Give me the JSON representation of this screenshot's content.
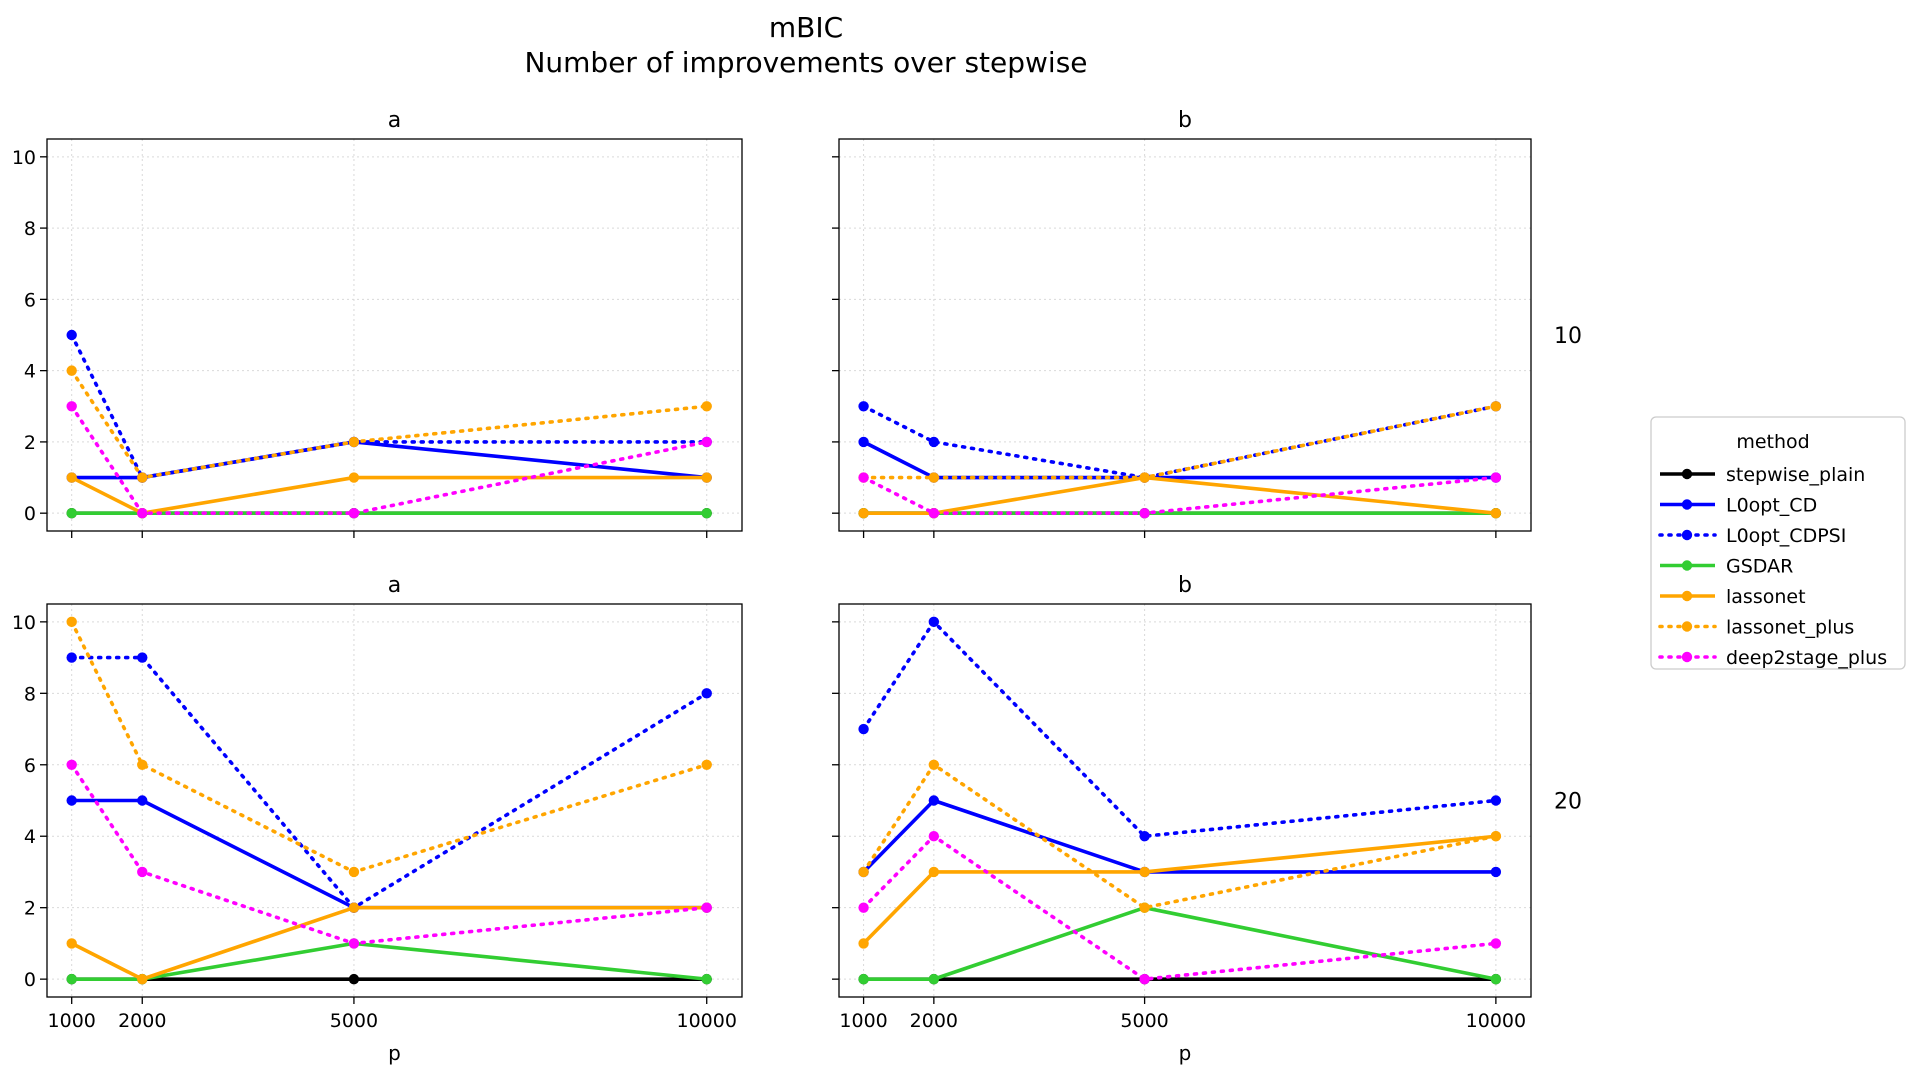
{
  "chart_data": {
    "type": "line",
    "title": "mBIC",
    "subtitle": "Number of improvements over stepwise",
    "xlabel": "p",
    "ylabel": "",
    "x": [
      1000,
      2000,
      5000,
      10000
    ],
    "xticks": [
      "1000",
      "2000",
      "5000",
      "10000"
    ],
    "yticks": [
      "0",
      "2",
      "4",
      "6",
      "8",
      "10"
    ],
    "xlim": [
      650,
      10500
    ],
    "ylim": [
      -0.5,
      10.5
    ],
    "grid": true,
    "legend_position": "right",
    "legend_title": "method",
    "methods": [
      {
        "name": "stepwise_plain",
        "color": "#000000",
        "style": "solid"
      },
      {
        "name": "L0opt_CD",
        "color": "#0000ff",
        "style": "solid"
      },
      {
        "name": "L0opt_CDPSI",
        "color": "#0000ff",
        "style": "dotted"
      },
      {
        "name": "GSDAR",
        "color": "#32cd32",
        "style": "solid"
      },
      {
        "name": "lassonet",
        "color": "#ffa500",
        "style": "solid"
      },
      {
        "name": "lassonet_plus",
        "color": "#ffa500",
        "style": "dotted"
      },
      {
        "name": "deep2stage_plus",
        "color": "#ff00ff",
        "style": "dotted"
      }
    ],
    "row_labels": [
      "10",
      "20"
    ],
    "panels": [
      {
        "col_title": "a",
        "row_label": "10",
        "series": {
          "stepwise_plain": [
            0,
            0,
            0,
            0
          ],
          "L0opt_CD": [
            1,
            1,
            2,
            1
          ],
          "L0opt_CDPSI": [
            5,
            1,
            2,
            2
          ],
          "GSDAR": [
            0,
            0,
            0,
            0
          ],
          "lassonet": [
            1,
            0,
            1,
            1
          ],
          "lassonet_plus": [
            4,
            1,
            2,
            3
          ],
          "deep2stage_plus": [
            3,
            0,
            0,
            2
          ]
        }
      },
      {
        "col_title": "b",
        "row_label": "10",
        "series": {
          "stepwise_plain": [
            0,
            0,
            0,
            0
          ],
          "L0opt_CD": [
            2,
            1,
            1,
            1
          ],
          "L0opt_CDPSI": [
            3,
            2,
            1,
            3
          ],
          "GSDAR": [
            0,
            0,
            0,
            0
          ],
          "lassonet": [
            0,
            0,
            1,
            0
          ],
          "lassonet_plus": [
            1,
            1,
            1,
            3
          ],
          "deep2stage_plus": [
            1,
            0,
            0,
            1
          ]
        }
      },
      {
        "col_title": "a",
        "row_label": "20",
        "series": {
          "stepwise_plain": [
            0,
            0,
            0,
            0
          ],
          "L0opt_CD": [
            5,
            5,
            2,
            2
          ],
          "L0opt_CDPSI": [
            9,
            9,
            2,
            8
          ],
          "GSDAR": [
            0,
            0,
            1,
            0
          ],
          "lassonet": [
            1,
            0,
            2,
            2
          ],
          "lassonet_plus": [
            10,
            6,
            3,
            6
          ],
          "deep2stage_plus": [
            6,
            3,
            1,
            2
          ]
        }
      },
      {
        "col_title": "b",
        "row_label": "20",
        "series": {
          "stepwise_plain": [
            0,
            0,
            0,
            0
          ],
          "L0opt_CD": [
            3,
            5,
            3,
            3
          ],
          "L0opt_CDPSI": [
            7,
            10,
            4,
            5
          ],
          "GSDAR": [
            0,
            0,
            2,
            0
          ],
          "lassonet": [
            1,
            3,
            3,
            4
          ],
          "lassonet_plus": [
            3,
            6,
            2,
            4
          ],
          "deep2stage_plus": [
            2,
            4,
            0,
            1
          ]
        }
      }
    ]
  }
}
